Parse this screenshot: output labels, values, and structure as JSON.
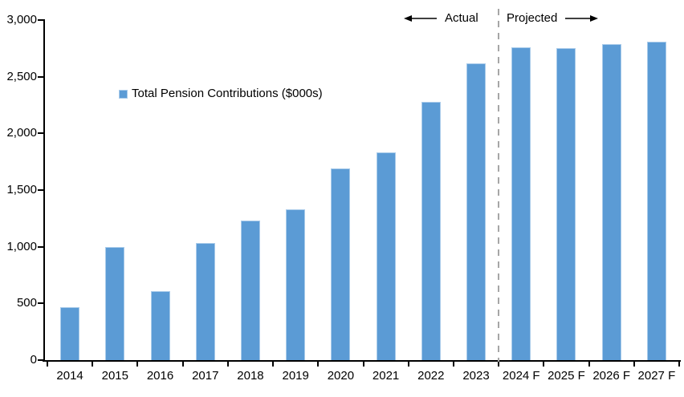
{
  "chart_data": {
    "type": "bar",
    "title": "",
    "xlabel": "",
    "ylabel": "",
    "legend": "Total Pension Contributions ($000s)",
    "legend_position": "inside-upper-left",
    "grid": false,
    "categories": [
      "2014",
      "2015",
      "2016",
      "2017",
      "2018",
      "2019",
      "2020",
      "2021",
      "2022",
      "2023",
      "2024 F",
      "2025 F",
      "2026 F",
      "2027 F"
    ],
    "values": [
      470,
      1000,
      610,
      1030,
      1230,
      1330,
      1690,
      1830,
      2280,
      2620,
      2760,
      2750,
      2790,
      2810
    ],
    "ylim": [
      0,
      3000
    ],
    "ytick_step": 500,
    "ytick_labels": [
      "0",
      "500",
      "1,000",
      "1,500",
      "2,000",
      "2,500",
      "3,000"
    ],
    "annotations": {
      "actual_label": "Actual",
      "projected_label": "Projected",
      "divider_between": [
        "2023",
        "2024 F"
      ]
    },
    "colors": {
      "bar_fill": "#5B9BD5",
      "bar_border": "#A9CBEA",
      "axis": "#000000",
      "text": "#000000",
      "divider": "#A6A6A6"
    }
  }
}
